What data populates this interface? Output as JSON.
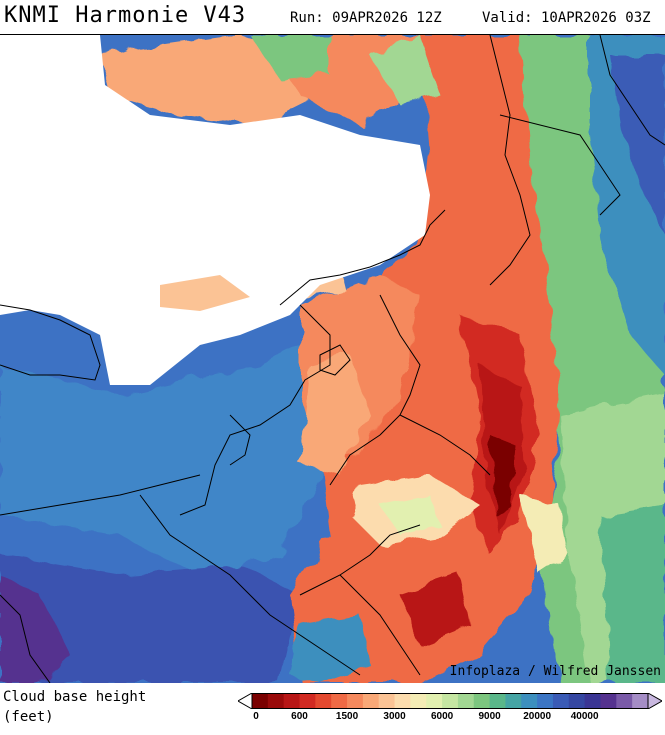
{
  "header": {
    "title": "KNMI Harmonie V43",
    "run": "Run: 09APR2026 12Z",
    "valid": "Valid: 10APR2026 03Z"
  },
  "map": {
    "credit": "Infoplaza / Wilfred Janssen"
  },
  "legend": {
    "variable_line1": "Cloud base height",
    "variable_line2": "(feet)",
    "ticks": [
      "0",
      "600",
      "1500",
      "3000",
      "6000",
      "9000",
      "20000",
      "40000"
    ],
    "colors": [
      "#7a0000",
      "#9a0a0a",
      "#b81616",
      "#d22a22",
      "#e4492f",
      "#ef6a45",
      "#f5895d",
      "#f9a877",
      "#fbc395",
      "#fcdcae",
      "#f4ecb5",
      "#e2f0b0",
      "#c5e6a2",
      "#a2d793",
      "#7cc67f",
      "#5ab78a",
      "#45a4a4",
      "#3c8fbe",
      "#3b75c4",
      "#3a5bb6",
      "#3547a2",
      "#3a3594",
      "#55328f",
      "#7a5aa8",
      "#a58dc6"
    ]
  }
}
